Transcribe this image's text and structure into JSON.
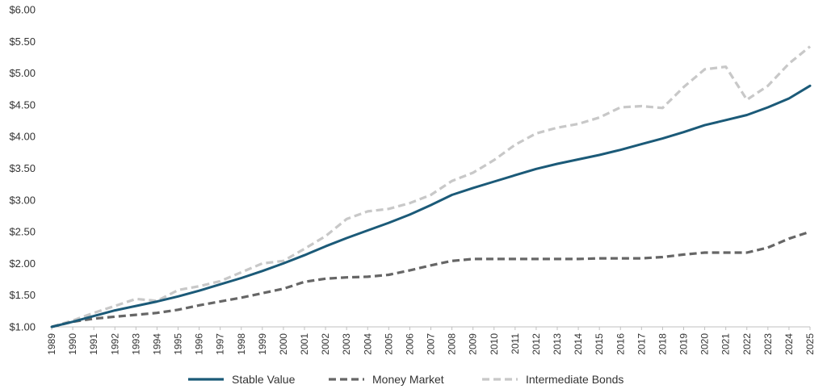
{
  "chart_data": {
    "type": "line",
    "title": "",
    "xlabel": "",
    "ylabel": "",
    "ylim": [
      1.0,
      6.0
    ],
    "xlim": [
      1989,
      2025
    ],
    "y_ticks": [
      "$1.00",
      "$1.50",
      "$2.00",
      "$2.50",
      "$3.00",
      "$3.50",
      "$4.00",
      "$4.50",
      "$5.00",
      "$5.50",
      "$6.00"
    ],
    "x_ticks": [
      "1989",
      "1990",
      "1991",
      "1992",
      "1993",
      "1994",
      "1995",
      "1996",
      "1997",
      "1998",
      "1999",
      "2000",
      "2001",
      "2002",
      "2003",
      "2004",
      "2005",
      "2006",
      "2007",
      "2008",
      "2009",
      "2010",
      "2011",
      "2012",
      "2013",
      "2014",
      "2015",
      "2016",
      "2017",
      "2018",
      "2019",
      "2020",
      "2021",
      "2022",
      "2023",
      "2024",
      "2025"
    ],
    "grid": false,
    "legend_position": "bottom",
    "series": [
      {
        "name": "Stable Value",
        "color": "#1b5a78",
        "style": "solid",
        "x": [
          1989,
          1990,
          1991,
          1992,
          1993,
          1994,
          1995,
          1996,
          1997,
          1998,
          1999,
          2000,
          2001,
          2002,
          2003,
          2004,
          2005,
          2006,
          2007,
          2008,
          2009,
          2010,
          2011,
          2012,
          2013,
          2014,
          2015,
          2016,
          2017,
          2018,
          2019,
          2020,
          2021,
          2022,
          2023,
          2024,
          2025
        ],
        "values": [
          1.0,
          1.08,
          1.17,
          1.26,
          1.33,
          1.4,
          1.48,
          1.57,
          1.67,
          1.77,
          1.88,
          2.0,
          2.13,
          2.27,
          2.4,
          2.52,
          2.64,
          2.77,
          2.92,
          3.08,
          3.19,
          3.29,
          3.39,
          3.49,
          3.57,
          3.64,
          3.71,
          3.79,
          3.88,
          3.97,
          4.07,
          4.18,
          4.26,
          4.34,
          4.46,
          4.6,
          4.8
        ]
      },
      {
        "name": "Money Market",
        "color": "#666666",
        "style": "dashed",
        "x": [
          1989,
          1990,
          1991,
          1992,
          1993,
          1994,
          1995,
          1996,
          1997,
          1998,
          1999,
          2000,
          2001,
          2002,
          2003,
          2004,
          2005,
          2006,
          2007,
          2008,
          2009,
          2010,
          2011,
          2012,
          2013,
          2014,
          2015,
          2016,
          2017,
          2018,
          2019,
          2020,
          2021,
          2022,
          2023,
          2024,
          2025
        ],
        "values": [
          1.0,
          1.08,
          1.13,
          1.16,
          1.19,
          1.22,
          1.27,
          1.34,
          1.4,
          1.46,
          1.53,
          1.6,
          1.71,
          1.76,
          1.78,
          1.79,
          1.82,
          1.89,
          1.97,
          2.04,
          2.07,
          2.07,
          2.07,
          2.07,
          2.07,
          2.07,
          2.08,
          2.08,
          2.08,
          2.1,
          2.14,
          2.17,
          2.17,
          2.17,
          2.25,
          2.39,
          2.5
        ]
      },
      {
        "name": "Intermediate Bonds",
        "color": "#c8c8c8",
        "style": "dashed",
        "x": [
          1989,
          1990,
          1991,
          1992,
          1993,
          1994,
          1995,
          1996,
          1997,
          1998,
          1999,
          2000,
          2001,
          2002,
          2003,
          2004,
          2005,
          2006,
          2007,
          2008,
          2009,
          2010,
          2011,
          2012,
          2013,
          2014,
          2015,
          2016,
          2017,
          2018,
          2019,
          2020,
          2021,
          2022,
          2023,
          2024,
          2025
        ],
        "values": [
          1.0,
          1.1,
          1.22,
          1.33,
          1.44,
          1.41,
          1.58,
          1.64,
          1.72,
          1.86,
          2.0,
          2.04,
          2.23,
          2.43,
          2.7,
          2.82,
          2.86,
          2.95,
          3.08,
          3.3,
          3.43,
          3.63,
          3.87,
          4.05,
          4.14,
          4.2,
          4.3,
          4.46,
          4.48,
          4.45,
          4.78,
          5.06,
          5.1,
          4.58,
          4.8,
          5.15,
          5.42
        ]
      }
    ]
  }
}
